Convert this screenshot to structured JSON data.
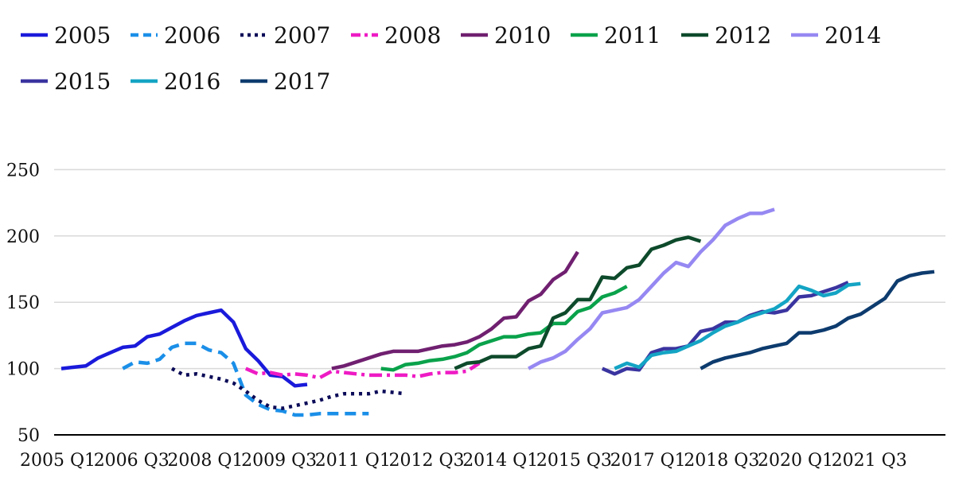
{
  "chart_data": {
    "type": "line",
    "title": "",
    "xlabel": "",
    "ylabel": "",
    "ylim": [
      50,
      260
    ],
    "grid": true,
    "legend_position": "top",
    "x_tick_labels": [
      "2005 Q1",
      "2006 Q3",
      "2008 Q1",
      "2009 Q3",
      "2011 Q1",
      "2012 Q3",
      "2014 Q1",
      "2015 Q3",
      "2017 Q1",
      "2018 Q3",
      "2020 Q1",
      "2021 Q3"
    ],
    "y_ticks": [
      50,
      100,
      150,
      200,
      250
    ],
    "series": [
      {
        "name": "2005",
        "color": "#1a1adb",
        "dash": "solid",
        "start": 0,
        "values": [
          100,
          101,
          102,
          108,
          112,
          116,
          117,
          124,
          126,
          131,
          136,
          140,
          142,
          144,
          135,
          115,
          106,
          95,
          94,
          87,
          88
        ]
      },
      {
        "name": "2006",
        "color": "#1b8fe8",
        "dash": "dash",
        "start": 5,
        "values": [
          100,
          105,
          104,
          107,
          116,
          119,
          119,
          114,
          112,
          104,
          80,
          73,
          69,
          68,
          65,
          65,
          66,
          66,
          66,
          66,
          66
        ]
      },
      {
        "name": "2007",
        "color": "#0b0b58",
        "dash": "dot",
        "start": 9,
        "values": [
          100,
          95,
          96,
          94,
          92,
          89,
          83,
          76,
          71,
          70,
          72,
          74,
          76,
          79,
          81,
          81,
          81,
          83,
          82,
          81
        ]
      },
      {
        "name": "2008",
        "color": "#ee1bc4",
        "dash": "dashdot",
        "start": 15,
        "values": [
          100,
          96,
          97,
          95,
          96,
          95,
          93,
          98,
          97,
          96,
          95,
          95,
          95,
          95,
          94,
          96,
          97,
          97,
          98,
          104
        ]
      },
      {
        "name": "2010",
        "color": "#702070",
        "dash": "solid",
        "start": 22,
        "values": [
          100,
          102,
          105,
          108,
          111,
          113,
          113,
          113,
          115,
          117,
          118,
          120,
          124,
          130,
          138,
          139,
          151,
          156,
          167,
          173,
          188
        ]
      },
      {
        "name": "2011",
        "color": "#0aa24b",
        "dash": "solid",
        "start": 26,
        "values": [
          100,
          99,
          103,
          104,
          106,
          107,
          109,
          112,
          118,
          121,
          124,
          124,
          126,
          127,
          134,
          134,
          143,
          146,
          154,
          157,
          162
        ]
      },
      {
        "name": "2012",
        "color": "#0d4a2b",
        "dash": "solid",
        "start": 32,
        "values": [
          100,
          104,
          105,
          109,
          109,
          109,
          115,
          117,
          138,
          142,
          152,
          152,
          169,
          168,
          176,
          178,
          190,
          193,
          197,
          199,
          196
        ]
      },
      {
        "name": "2014",
        "color": "#9688f2",
        "dash": "solid",
        "start": 38,
        "values": [
          100,
          105,
          108,
          113,
          122,
          130,
          142,
          144,
          146,
          152,
          162,
          172,
          180,
          177,
          188,
          197,
          208,
          213,
          217,
          217,
          220
        ]
      },
      {
        "name": "2015",
        "color": "#3a34a0",
        "dash": "solid",
        "start": 44,
        "values": [
          100,
          96,
          100,
          99,
          112,
          115,
          115,
          117,
          128,
          130,
          135,
          135,
          140,
          143,
          142,
          144,
          154,
          155,
          158,
          161,
          165
        ]
      },
      {
        "name": "2016",
        "color": "#14a4c4",
        "dash": "solid",
        "start": 45,
        "values": [
          100,
          104,
          101,
          110,
          112,
          113,
          117,
          121,
          127,
          132,
          135,
          139,
          142,
          145,
          151,
          162,
          159,
          155,
          157,
          163,
          164
        ]
      },
      {
        "name": "2017",
        "color": "#0d3b6e",
        "dash": "solid",
        "start": 52,
        "values": [
          100,
          105,
          108,
          110,
          112,
          115,
          117,
          119,
          127,
          127,
          129,
          132,
          138,
          141,
          147,
          153,
          166,
          170,
          172,
          173
        ]
      }
    ]
  }
}
